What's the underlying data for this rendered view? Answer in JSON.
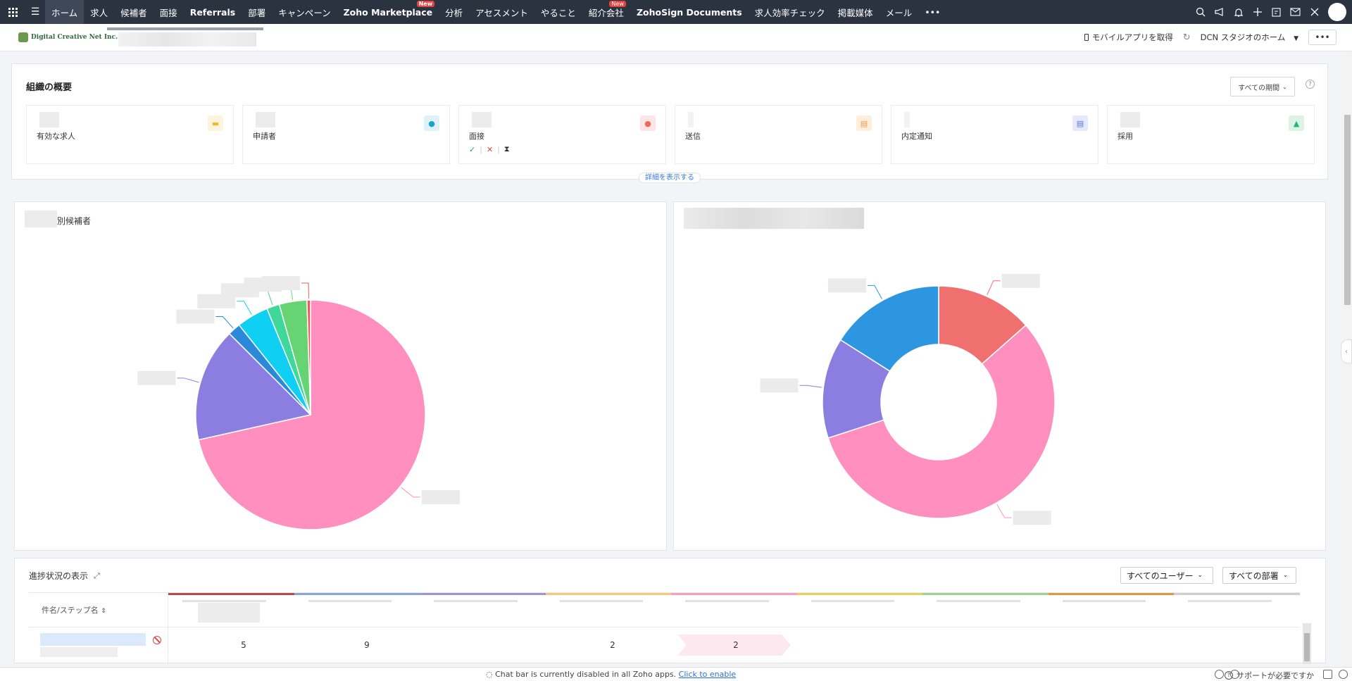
{
  "nav": {
    "items": [
      {
        "label": "ホーム",
        "active": true
      },
      {
        "label": "求人"
      },
      {
        "label": "候補者"
      },
      {
        "label": "面接"
      },
      {
        "label": "Referrals",
        "bold": true
      },
      {
        "label": "部署"
      },
      {
        "label": "キャンペーン"
      },
      {
        "label": "Zoho Marketplace",
        "bold": true,
        "badge": "New"
      },
      {
        "label": "分析"
      },
      {
        "label": "アセスメント"
      },
      {
        "label": "やること"
      },
      {
        "label": "紹介会社",
        "badge": "New"
      },
      {
        "label": "ZohoSign Documents",
        "bold": true
      },
      {
        "label": "求人効率チェック"
      },
      {
        "label": "掲載媒体"
      },
      {
        "label": "メール"
      }
    ],
    "more_label": "•••",
    "icons": [
      "search-icon",
      "megaphone-icon",
      "bell-icon",
      "plus-icon",
      "calendar-icon",
      "mail-icon",
      "tools-icon"
    ]
  },
  "subheader": {
    "logo_text": "Digital Creative Net Inc.",
    "mobile_app_label": "モバイルアプリを取得",
    "studio_label": "DCN スタジオのホーム",
    "more_label": "•••"
  },
  "overview": {
    "title": "組織の概要",
    "period": "すべての期間",
    "help": "?",
    "details_link": "詳細を表示する",
    "cards": [
      {
        "label": "有効な求人",
        "icon": "briefcase-icon",
        "color": "#f2b92b",
        "bg": "#fdf4dd"
      },
      {
        "label": "申請者",
        "icon": "user-icon",
        "color": "#1aa3c9",
        "bg": "#dff2f8"
      },
      {
        "label": "面接",
        "icon": "users-icon",
        "color": "#ee6a5d",
        "bg": "#fde6e3"
      },
      {
        "label": "送信",
        "icon": "document-icon",
        "color": "#f59a3c",
        "bg": "#fdeede"
      },
      {
        "label": "内定通知",
        "icon": "offer-doc-icon",
        "color": "#5b6fe0",
        "bg": "#e6e9fb"
      },
      {
        "label": "採用",
        "icon": "thumbs-up-icon",
        "color": "#22b573",
        "bg": "#dcf4e8"
      }
    ],
    "interview_marks": [
      "✓",
      "✕",
      "⧗"
    ]
  },
  "left_panel": {
    "title": "別候補者"
  },
  "chart_data": [
    {
      "type": "pie",
      "title": "別候補者",
      "series": [
        {
          "slices": [
            {
              "value": 71.5,
              "color": "#ff8fbf"
            },
            {
              "value": 16.0,
              "color": "#8c7ee0"
            },
            {
              "value": 1.8,
              "color": "#2a8ad8"
            },
            {
              "value": 4.5,
              "color": "#0fd0f3"
            },
            {
              "value": 1.8,
              "color": "#3ed89a"
            },
            {
              "value": 3.9,
              "color": "#66d473"
            },
            {
              "value": 0.5,
              "color": "#f05a5a"
            }
          ]
        }
      ]
    },
    {
      "type": "pie",
      "donut": true,
      "series": [
        {
          "slices": [
            {
              "value": 13.5,
              "color": "#f07070"
            },
            {
              "value": 56.5,
              "color": "#ff8fbf"
            },
            {
              "value": 14.0,
              "color": "#8c7ee0"
            },
            {
              "value": 16.0,
              "color": "#2d96e0"
            }
          ]
        }
      ]
    }
  ],
  "progress": {
    "title": "進捗状況の表示",
    "users_filter": "すべてのユーザー",
    "dept_filter": "すべての部署",
    "name_column": "件名/ステップ名",
    "stage_colors": [
      "#b94a4a",
      "#8aa5d3",
      "#9e97cf",
      "#f5c97a",
      "#f59fbf",
      "#e8d35a",
      "#9fd48c",
      "#d89a3c",
      "#cfcfcf"
    ],
    "row": {
      "values": [
        "5",
        "9",
        "2",
        "2"
      ]
    }
  },
  "bottom": {
    "chat_text": "Chat bar is currently disabled in all Zoho apps.",
    "chat_link": "Click to enable",
    "support": "サポートが必要ですか"
  }
}
